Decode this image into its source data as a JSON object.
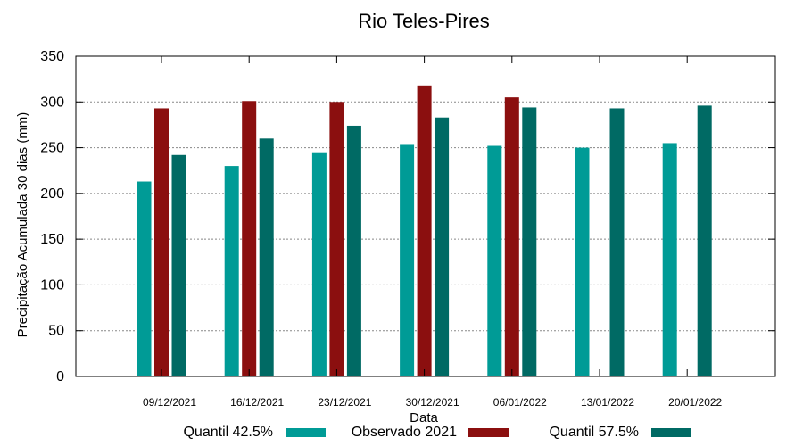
{
  "chart_data": {
    "type": "bar",
    "title": "Rio Teles-Pires",
    "xlabel": "Data",
    "ylabel": "Precipitação Acumulada 30 dias (mm)",
    "ylim": [
      0,
      350
    ],
    "yticks": [
      "0",
      "50",
      "100",
      "150",
      "200",
      "250",
      "300",
      "350"
    ],
    "grid": true,
    "legend_position": "bottom",
    "categories": [
      "09/12/2021",
      "16/12/2021",
      "23/12/2021",
      "30/12/2021",
      "06/01/2022",
      "13/01/2022",
      "20/01/2022"
    ],
    "series": [
      {
        "name": "Quantil 42.5%",
        "color": "#009b96",
        "values": [
          213,
          230,
          245,
          254,
          252,
          250,
          255
        ]
      },
      {
        "name": "Observado 2021",
        "color": "#8b0f0f",
        "values": [
          293,
          301,
          300,
          318,
          305,
          null,
          null
        ]
      },
      {
        "name": "Quantil 57.5%",
        "color": "#006a64",
        "values": [
          242,
          260,
          274,
          283,
          294,
          293,
          296
        ]
      }
    ]
  }
}
